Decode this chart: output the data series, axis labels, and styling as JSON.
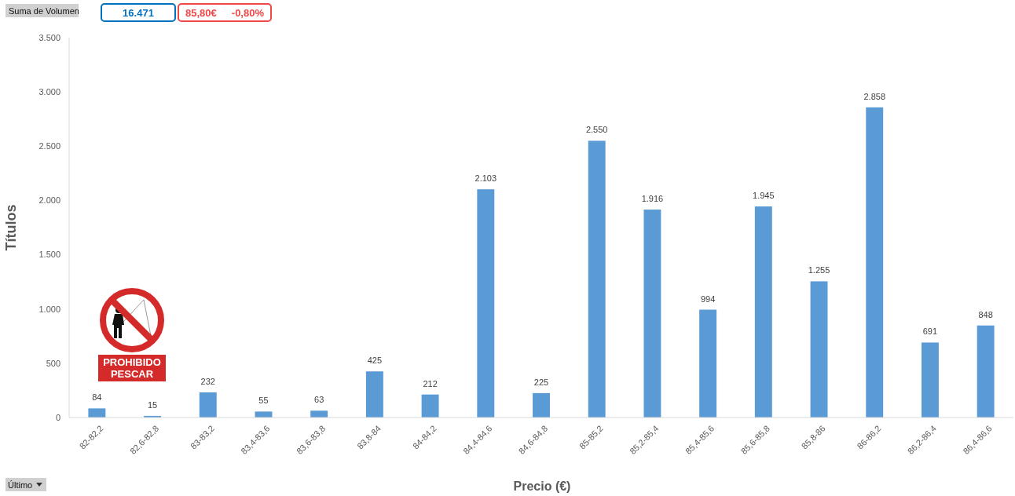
{
  "chart_data": {
    "type": "bar",
    "xlabel": "Precio (€)",
    "ylabel": "Títulos",
    "categories": [
      "82-82,2",
      "82,6-82,8",
      "83-83,2",
      "83,4-83,6",
      "83,6-83,8",
      "83,8-84",
      "84-84,2",
      "84,4-84,6",
      "84,6-84,8",
      "85-85,2",
      "85,2-85,4",
      "85,4-85,6",
      "85,6-85,8",
      "85,8-86",
      "86-86,2",
      "86,2-86,4",
      "86,4-86,6"
    ],
    "values": [
      84,
      15,
      232,
      55,
      63,
      425,
      212,
      2103,
      225,
      2550,
      1916,
      994,
      1945,
      1255,
      2858,
      691,
      848
    ],
    "value_labels": [
      "84",
      "15",
      "232",
      "55",
      "63",
      "425",
      "212",
      "2.103",
      "225",
      "2.550",
      "1.916",
      "994",
      "1.945",
      "1.255",
      "2.858",
      "691",
      "848"
    ],
    "color": "#5b9bd5",
    "ylim": [
      0,
      3500
    ],
    "yticks": [
      0,
      500,
      {
        "value": 1000,
        "label": "1.000"
      },
      {
        "value": 1500,
        "label": "1.500"
      },
      {
        "value": 2000,
        "label": "2.000"
      },
      {
        "value": 2500,
        "label": "2.500"
      },
      {
        "value": 3000,
        "label": "3.000"
      },
      {
        "value": 3500,
        "label": "3.500"
      }
    ],
    "annotations": [
      "Suma de Volumen",
      "16.471",
      "85,80€",
      "-0,80%",
      "PROHIBIDO\nPESCAR",
      "Último"
    ]
  }
}
